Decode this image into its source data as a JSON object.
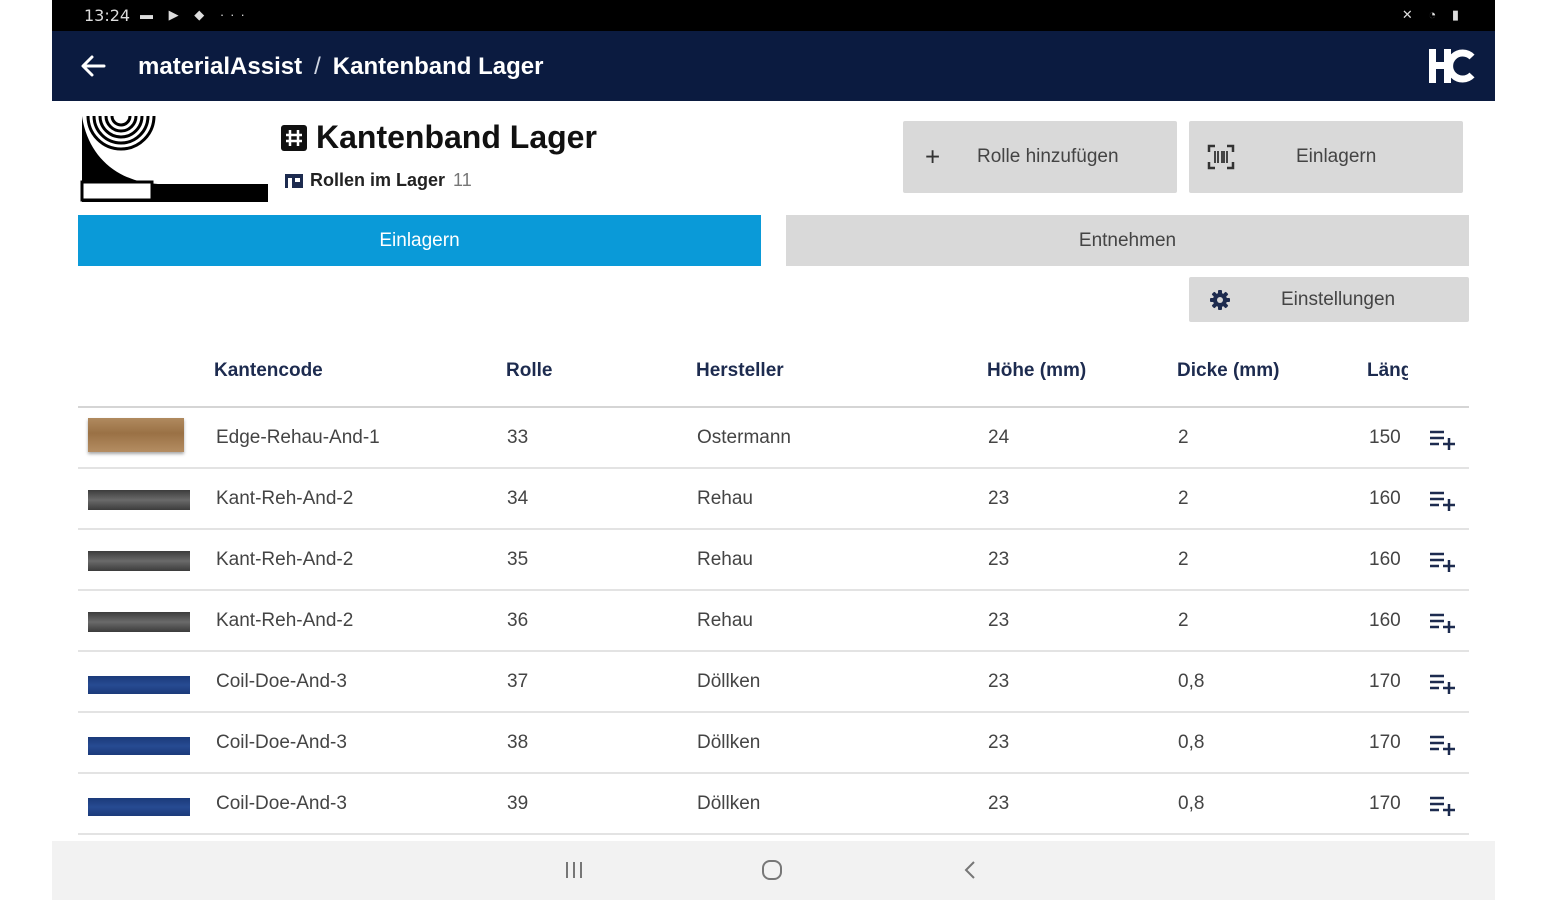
{
  "status_bar": {
    "time": "13:24",
    "left_icons": [
      "notification-icons",
      "more-dots"
    ],
    "right_icons": [
      "mute-icon",
      "wifi-icon",
      "battery-icon"
    ],
    "dots": "···"
  },
  "app_bar": {
    "app_name": "materialAssist",
    "separator": "/",
    "page": "Kantenband Lager",
    "logo": "HC"
  },
  "header": {
    "title": "Kantenband Lager",
    "subtitle_label": "Rollen im Lager",
    "subtitle_count": "11"
  },
  "actions": {
    "add_roll": "Rolle hinzufügen",
    "store": "Einlagern",
    "settings": "Einstellungen"
  },
  "segments": {
    "active": "Einlagern",
    "inactive": "Entnehmen"
  },
  "table": {
    "columns": [
      "Kantencode",
      "Rolle",
      "Hersteller",
      "Höhe (mm)",
      "Dicke (mm)",
      "Läng"
    ],
    "rows": [
      {
        "swatch": "wood",
        "code": "Edge-Rehau-And-1",
        "roll": "33",
        "maker": "Ostermann",
        "height": "24",
        "thickness": "2",
        "length": "150"
      },
      {
        "swatch": "grey",
        "code": "Kant-Reh-And-2",
        "roll": "34",
        "maker": "Rehau",
        "height": "23",
        "thickness": "2",
        "length": "160"
      },
      {
        "swatch": "grey",
        "code": "Kant-Reh-And-2",
        "roll": "35",
        "maker": "Rehau",
        "height": "23",
        "thickness": "2",
        "length": "160"
      },
      {
        "swatch": "grey",
        "code": "Kant-Reh-And-2",
        "roll": "36",
        "maker": "Rehau",
        "height": "23",
        "thickness": "2",
        "length": "160"
      },
      {
        "swatch": "blue",
        "code": "Coil-Doe-And-3",
        "roll": "37",
        "maker": "Döllken",
        "height": "23",
        "thickness": "0,8",
        "length": "170"
      },
      {
        "swatch": "blue",
        "code": "Coil-Doe-And-3",
        "roll": "38",
        "maker": "Döllken",
        "height": "23",
        "thickness": "0,8",
        "length": "170"
      },
      {
        "swatch": "blue",
        "code": "Coil-Doe-And-3",
        "roll": "39",
        "maker": "Döllken",
        "height": "23",
        "thickness": "0,8",
        "length": "170"
      }
    ]
  },
  "colors": {
    "app_bar": "#0b1b40",
    "accent": "#0a9ad8",
    "button_grey": "#d9d9d9"
  }
}
